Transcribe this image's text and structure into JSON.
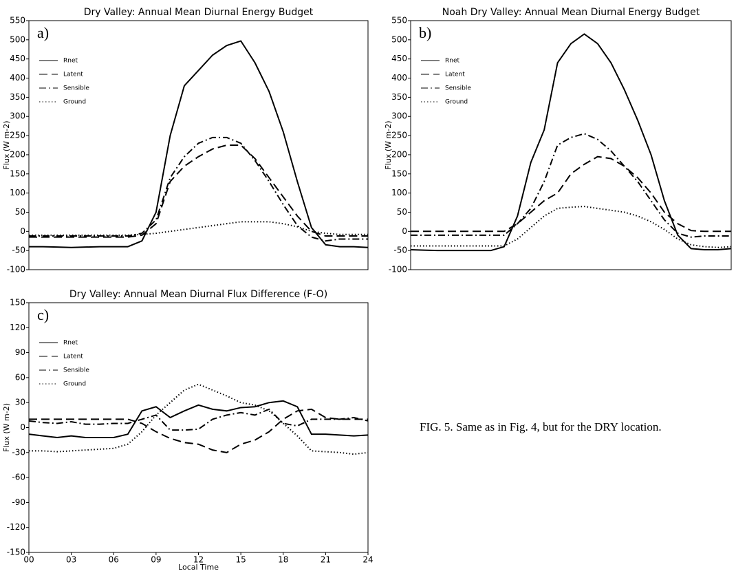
{
  "caption": "FIG. 5. Same as in Fig. 4, but for the DRY location.",
  "chart_data": [
    {
      "type": "line",
      "title": "Dry Valley:  Annual Mean Diurnal Energy Budget",
      "annotation": "a)",
      "ylabel": "Flux (W m-2)",
      "x": [
        0,
        1,
        2,
        3,
        4,
        5,
        6,
        7,
        8,
        9,
        10,
        11,
        12,
        13,
        14,
        15,
        16,
        17,
        18,
        19,
        20,
        21,
        22,
        23,
        24
      ],
      "xlim": [
        0,
        24
      ],
      "ylim": [
        -100,
        550
      ],
      "yticks": [
        -100,
        -50,
        0,
        50,
        100,
        150,
        200,
        250,
        300,
        350,
        400,
        450,
        500,
        550
      ],
      "series": [
        {
          "name": "Rnet",
          "color": "#000000",
          "dash": "solid",
          "values": [
            -40,
            -40,
            -41,
            -42,
            -41,
            -40,
            -40,
            -40,
            -25,
            50,
            250,
            380,
            420,
            460,
            485,
            497,
            440,
            365,
            260,
            130,
            10,
            -35,
            -40,
            -40,
            -42
          ]
        },
        {
          "name": "Latent",
          "color": "#000000",
          "dash": "dashed",
          "values": [
            -15,
            -15,
            -15,
            -15,
            -15,
            -15,
            -15,
            -15,
            -10,
            20,
            130,
            170,
            195,
            215,
            225,
            225,
            190,
            140,
            90,
            40,
            0,
            -12,
            -12,
            -12,
            -12
          ]
        },
        {
          "name": "Sensible",
          "color": "#000000",
          "dash": "dashdot",
          "values": [
            -12,
            -12,
            -12,
            -12,
            -12,
            -12,
            -12,
            -12,
            -5,
            30,
            140,
            195,
            230,
            245,
            245,
            230,
            185,
            130,
            70,
            15,
            -15,
            -25,
            -20,
            -20,
            -20
          ]
        },
        {
          "name": "Ground",
          "color": "#000000",
          "dash": "dotted",
          "values": [
            -10,
            -10,
            -10,
            -10,
            -10,
            -10,
            -10,
            -10,
            -8,
            -5,
            0,
            5,
            10,
            15,
            20,
            25,
            25,
            25,
            20,
            12,
            0,
            -5,
            -8,
            -8,
            -8
          ]
        }
      ]
    },
    {
      "type": "line",
      "title": "Noah Dry Valley:  Annual Mean Diurnal Energy Budget",
      "annotation": "b)",
      "ylabel": "Flux (W m-2)",
      "x": [
        0,
        1,
        2,
        3,
        4,
        5,
        6,
        7,
        8,
        9,
        10,
        11,
        12,
        13,
        14,
        15,
        16,
        17,
        18,
        19,
        20,
        21,
        22,
        23,
        24
      ],
      "xlim": [
        0,
        24
      ],
      "ylim": [
        -100,
        550
      ],
      "yticks": [
        -100,
        -50,
        0,
        50,
        100,
        150,
        200,
        250,
        300,
        350,
        400,
        450,
        500,
        550
      ],
      "series": [
        {
          "name": "Rnet",
          "color": "#000000",
          "dash": "solid",
          "values": [
            -48,
            -49,
            -50,
            -50,
            -50,
            -50,
            -50,
            -40,
            40,
            180,
            265,
            440,
            490,
            515,
            490,
            440,
            370,
            290,
            200,
            80,
            -10,
            -45,
            -48,
            -48,
            -45
          ]
        },
        {
          "name": "Latent",
          "color": "#000000",
          "dash": "dashed",
          "values": [
            0,
            0,
            0,
            0,
            0,
            0,
            0,
            0,
            20,
            50,
            80,
            100,
            150,
            175,
            195,
            190,
            170,
            140,
            100,
            50,
            20,
            2,
            0,
            0,
            0
          ]
        },
        {
          "name": "Sensible",
          "color": "#000000",
          "dash": "dashdot",
          "values": [
            -10,
            -10,
            -10,
            -10,
            -10,
            -10,
            -10,
            -10,
            20,
            60,
            130,
            225,
            245,
            255,
            240,
            210,
            170,
            130,
            80,
            30,
            -5,
            -15,
            -12,
            -12,
            -12
          ]
        },
        {
          "name": "Ground",
          "color": "#000000",
          "dash": "dotted",
          "values": [
            -38,
            -38,
            -38,
            -38,
            -38,
            -38,
            -38,
            -38,
            -20,
            10,
            40,
            60,
            63,
            65,
            60,
            55,
            50,
            40,
            25,
            5,
            -20,
            -35,
            -40,
            -42,
            -40
          ]
        }
      ]
    },
    {
      "type": "line",
      "title": "Dry Valley:  Annual Mean Diurnal Flux Difference (F-O)",
      "annotation": "c)",
      "ylabel": "Flux (W m-2)",
      "xlabel": "Local Time",
      "x": [
        0,
        1,
        2,
        3,
        4,
        5,
        6,
        7,
        8,
        9,
        10,
        11,
        12,
        13,
        14,
        15,
        16,
        17,
        18,
        19,
        20,
        21,
        22,
        23,
        24
      ],
      "xlim": [
        0,
        24
      ],
      "xticks": [
        {
          "value": 0,
          "label": "00"
        },
        {
          "value": 3,
          "label": "03"
        },
        {
          "value": 6,
          "label": "06"
        },
        {
          "value": 9,
          "label": "09"
        },
        12,
        15,
        18,
        21,
        24
      ],
      "ylim": [
        -150,
        150
      ],
      "yticks": [
        -150,
        -120,
        -90,
        -60,
        -30,
        0,
        30,
        60,
        90,
        120,
        150
      ],
      "series": [
        {
          "name": "Rnet",
          "color": "#000000",
          "dash": "solid",
          "values": [
            -8,
            -10,
            -12,
            -10,
            -12,
            -12,
            -12,
            -8,
            20,
            25,
            12,
            20,
            27,
            22,
            20,
            24,
            25,
            30,
            32,
            25,
            -8,
            -8,
            -9,
            -10,
            -9
          ]
        },
        {
          "name": "Latent",
          "color": "#000000",
          "dash": "dashed",
          "values": [
            10,
            10,
            10,
            10,
            10,
            10,
            10,
            10,
            5,
            -5,
            -13,
            -18,
            -20,
            -27,
            -30,
            -20,
            -15,
            -5,
            10,
            20,
            22,
            12,
            10,
            10,
            10
          ]
        },
        {
          "name": "Sensible",
          "color": "#000000",
          "dash": "dashdot",
          "values": [
            8,
            6,
            5,
            7,
            4,
            4,
            5,
            5,
            10,
            15,
            -3,
            -3,
            -2,
            10,
            15,
            18,
            15,
            22,
            5,
            2,
            10,
            10,
            10,
            12,
            8
          ]
        },
        {
          "name": "Ground",
          "color": "#000000",
          "dash": "dotted",
          "values": [
            -28,
            -28,
            -29,
            -28,
            -27,
            -26,
            -25,
            -20,
            -5,
            15,
            30,
            45,
            52,
            45,
            38,
            30,
            27,
            20,
            5,
            -10,
            -28,
            -29,
            -30,
            -32,
            -30
          ]
        }
      ]
    }
  ]
}
